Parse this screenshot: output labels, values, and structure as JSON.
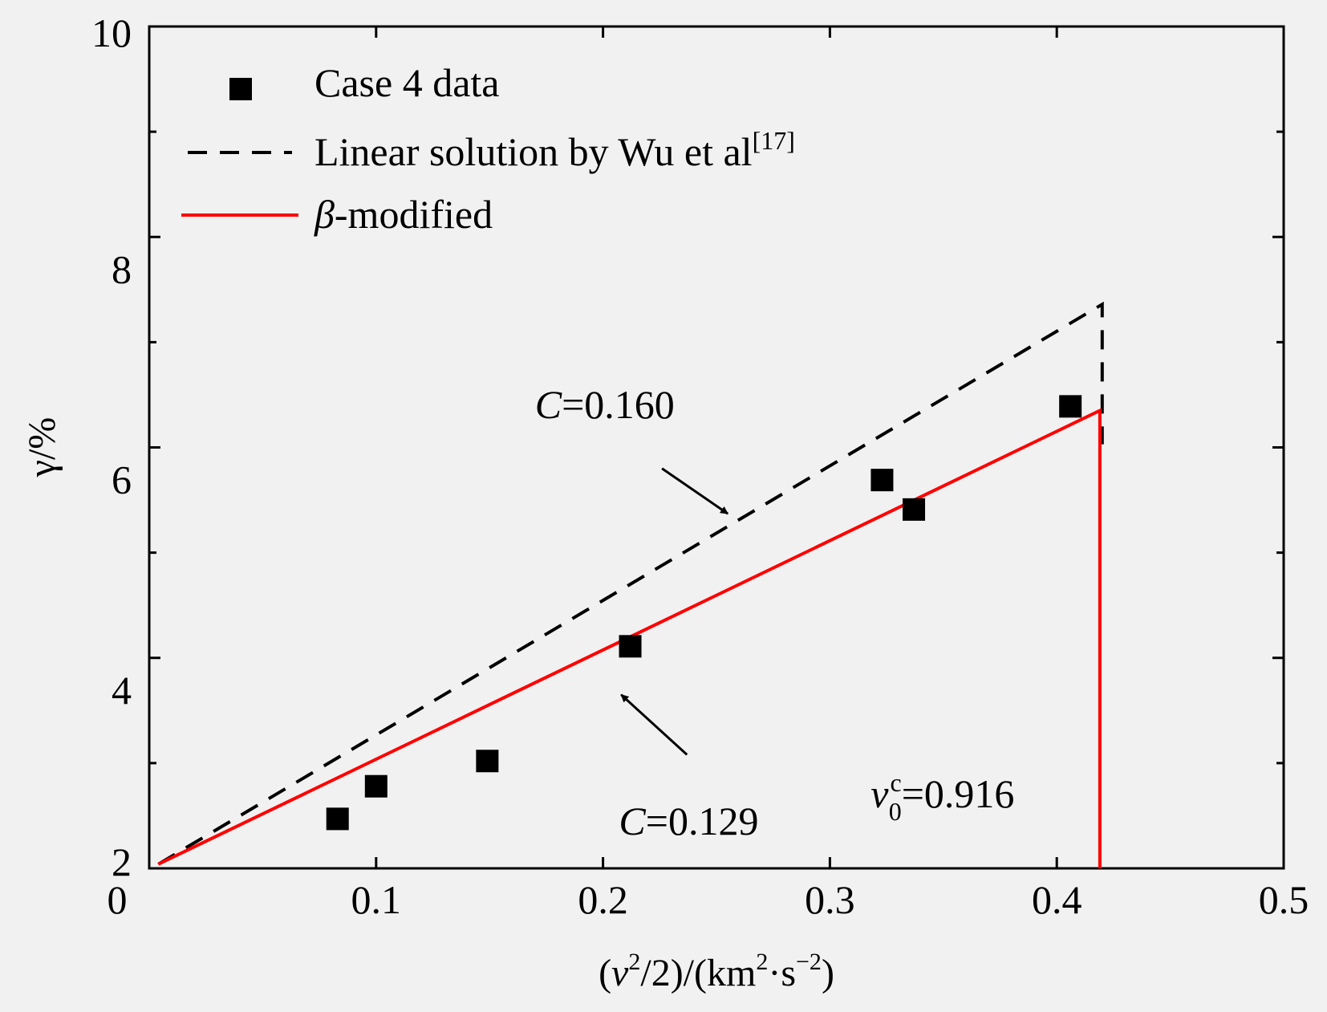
{
  "chart_data": {
    "type": "scatter",
    "title": "",
    "xlabel": {
      "open": "(",
      "var": "v",
      "sup": "2",
      "rest": "/2)/(km",
      "sup2": "2",
      "mid": "·s",
      "sup3": "−2",
      "close": ")"
    },
    "ylabel": "γ/%",
    "xlim": [
      0,
      0.5
    ],
    "ylim": [
      2,
      10
    ],
    "x_ticks": [
      "0",
      "0.1",
      "0.2",
      "0.3",
      "0.4",
      "0.5"
    ],
    "x_tick_values": [
      0,
      0.1,
      0.2,
      0.3,
      0.4,
      0.5
    ],
    "y_ticks": [
      "2",
      "4",
      "6",
      "8",
      "10"
    ],
    "y_tick_values": [
      2,
      4,
      6,
      8,
      10
    ],
    "y_minor_values": [
      3,
      5,
      7,
      9
    ],
    "grid": false,
    "legend_position": "top-left",
    "series": [
      {
        "name": "Case 4 data",
        "kind": "scatter",
        "marker": "square",
        "color": "#000000",
        "x": [
          0.083,
          0.1,
          0.149,
          0.212,
          0.323,
          0.337,
          0.406
        ],
        "y": [
          2.47,
          2.78,
          3.02,
          4.11,
          5.69,
          5.41,
          6.39
        ]
      },
      {
        "name": "Linear solution by Wu et al",
        "name_sup": "[17]",
        "kind": "line",
        "style": "dashed",
        "color": "#000000",
        "x": [
          0.004,
          0.42,
          0.42
        ],
        "y": [
          2.04,
          7.36,
          6.03
        ]
      },
      {
        "name_var": "β",
        "name": "-modified",
        "kind": "line",
        "style": "solid",
        "color": "#ff0000",
        "x": [
          0.004,
          0.419,
          0.419
        ],
        "y": [
          2.04,
          6.35,
          2.0
        ]
      }
    ],
    "annotations": [
      {
        "var": "C",
        "text": "=0.160",
        "x": 0.17,
        "y": 6.28,
        "arrow_from": [
          0.226,
          5.8
        ],
        "arrow_to": [
          0.255,
          5.37
        ]
      },
      {
        "var": "C",
        "text": "=0.129",
        "x": 0.207,
        "y": 2.32,
        "arrow_from": [
          0.237,
          3.08
        ],
        "arrow_to": [
          0.208,
          3.65
        ]
      },
      {
        "var": "v",
        "sub": "0",
        "sup": "c",
        "text": "=0.916",
        "x": 0.318,
        "y": 2.58
      }
    ]
  }
}
